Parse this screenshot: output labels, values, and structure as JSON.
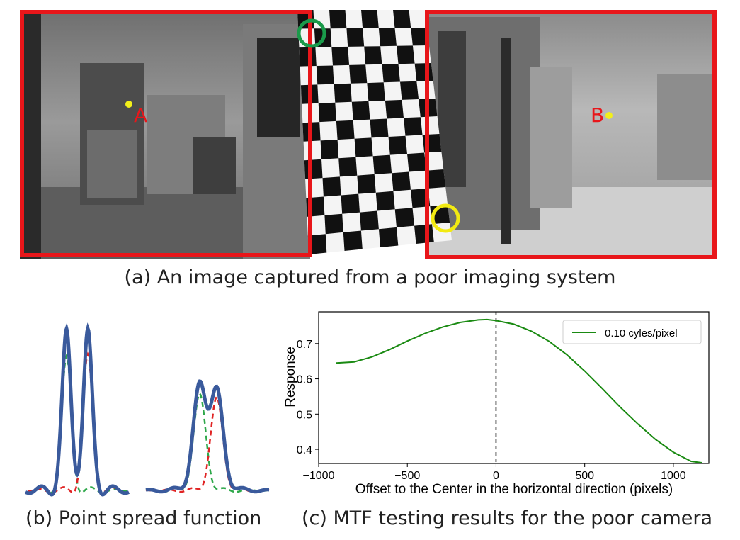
{
  "figure": {
    "panel_a": {
      "caption": "(a)  An image captured from a poor imaging system",
      "point_a_label": "A",
      "point_b_label": "B",
      "colors": {
        "roi_box": "#e8161a",
        "point": "#f2ef1a",
        "top_circle": "#1a9a4a",
        "bottom_circle": "#f2ea12"
      }
    },
    "panel_b": {
      "caption": "(b)  Point spread function",
      "colors": {
        "total": "#3a5a9c",
        "component_1": "#2ea84a",
        "component_2": "#e02424"
      }
    },
    "panel_c": {
      "caption": "(c)  MTF testing results for the poor camera"
    }
  },
  "chart_data": {
    "type": "line",
    "title": "",
    "xlabel": "Offset to the Center in the horizontal direction (pixels)",
    "ylabel": "Response",
    "xlim": [
      -1000,
      1200
    ],
    "ylim": [
      0.36,
      0.79
    ],
    "xticks": [
      -1000,
      -500,
      0,
      500,
      1000
    ],
    "xtick_labels": [
      "−1000",
      "−500",
      "0",
      "500",
      "1000"
    ],
    "yticks": [
      0.4,
      0.5,
      0.6,
      0.7
    ],
    "ytick_labels": [
      "0.4",
      "0.5",
      "0.6",
      "0.7"
    ],
    "grid": false,
    "legend_position": "top-right",
    "vline_x": 0,
    "series": [
      {
        "name": "0.10 cyles/pixel",
        "color": "#1a8a12",
        "x": [
          -900,
          -800,
          -700,
          -600,
          -500,
          -400,
          -300,
          -200,
          -100,
          -50,
          0,
          100,
          200,
          300,
          400,
          500,
          600,
          700,
          800,
          900,
          1000,
          1100,
          1160
        ],
        "y": [
          0.645,
          0.648,
          0.662,
          0.683,
          0.707,
          0.729,
          0.747,
          0.76,
          0.767,
          0.768,
          0.765,
          0.755,
          0.735,
          0.706,
          0.668,
          0.622,
          0.572,
          0.52,
          0.472,
          0.428,
          0.392,
          0.366,
          0.362
        ]
      }
    ]
  }
}
